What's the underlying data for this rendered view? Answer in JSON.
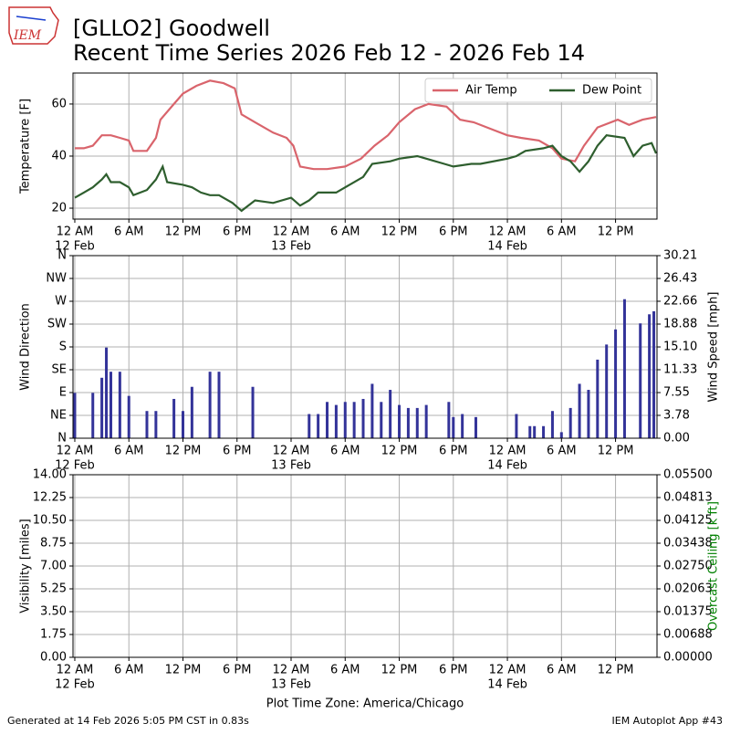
{
  "logo": "IEM",
  "title": "[GLLO2] Goodwell",
  "subtitle": "Recent Time Series 2026 Feb 12 - 2026 Feb 14",
  "footer_left": "Generated at 14 Feb 2026 5:05 PM CST in 0.83s",
  "footer_right": "IEM Autoplot App #43",
  "chart_data": [
    {
      "type": "line",
      "ylabel": "Temperature [F]",
      "legend": "upper right",
      "grid": true,
      "xlim": [
        "2026-02-11T23:48",
        "2026-02-14T16:36"
      ],
      "xticks": [
        {
          "value": "2026-02-12T00:00",
          "label": "12 AM"
        },
        {
          "value": "2026-02-12T06:00",
          "label": "6 AM"
        },
        {
          "value": "2026-02-12T12:00",
          "label": "12 PM"
        },
        {
          "value": "2026-02-12T18:00",
          "label": "6 PM"
        },
        {
          "value": "2026-02-13T00:00",
          "label": "12 AM"
        },
        {
          "value": "2026-02-13T06:00",
          "label": "6 AM"
        },
        {
          "value": "2026-02-13T12:00",
          "label": "12 PM"
        },
        {
          "value": "2026-02-13T18:00",
          "label": "6 PM"
        },
        {
          "value": "2026-02-14T00:00",
          "label": "12 AM"
        },
        {
          "value": "2026-02-14T06:00",
          "label": "6 AM"
        },
        {
          "value": "2026-02-14T12:00",
          "label": "12 PM"
        }
      ],
      "date_ticks": [
        {
          "value": "2026-02-12T00:00",
          "label": "12 Feb"
        },
        {
          "value": "2026-02-13T00:00",
          "label": "13 Feb"
        },
        {
          "value": "2026-02-14T00:00",
          "label": "14 Feb"
        }
      ],
      "ylim": [
        15.8,
        71.9
      ],
      "yticks": [
        20,
        40,
        60
      ],
      "series": [
        {
          "name": "Air Temp",
          "color": "#d9646c",
          "x": [
            "2026-02-12T00:00",
            "2026-02-12T01:00",
            "2026-02-12T02:00",
            "2026-02-12T03:00",
            "2026-02-12T04:00",
            "2026-02-12T05:00",
            "2026-02-12T06:00",
            "2026-02-12T06:30",
            "2026-02-12T08:00",
            "2026-02-12T09:00",
            "2026-02-12T09:30",
            "2026-02-12T11:00",
            "2026-02-12T12:00",
            "2026-02-12T13:30",
            "2026-02-12T15:00",
            "2026-02-12T16:30",
            "2026-02-12T17:45",
            "2026-02-12T18:30",
            "2026-02-12T20:00",
            "2026-02-12T22:00",
            "2026-02-12T23:30",
            "2026-02-13T00:15",
            "2026-02-13T01:00",
            "2026-02-13T02:30",
            "2026-02-13T04:00",
            "2026-02-13T06:00",
            "2026-02-13T07:45",
            "2026-02-13T09:15",
            "2026-02-13T10:45",
            "2026-02-13T12:00",
            "2026-02-13T13:45",
            "2026-02-13T15:15",
            "2026-02-13T17:15",
            "2026-02-13T18:45",
            "2026-02-13T20:15",
            "2026-02-13T22:30",
            "2026-02-14T00:00",
            "2026-02-14T01:30",
            "2026-02-14T03:30",
            "2026-02-14T05:00",
            "2026-02-14T06:00",
            "2026-02-14T07:30",
            "2026-02-14T08:30",
            "2026-02-14T10:00",
            "2026-02-14T12:15",
            "2026-02-14T13:30",
            "2026-02-14T15:00",
            "2026-02-14T16:30"
          ],
          "values": [
            43,
            43,
            44,
            48,
            48,
            47,
            46,
            42,
            42,
            47,
            54,
            60,
            64,
            67,
            69,
            68,
            66,
            56,
            53,
            49,
            47,
            44,
            36,
            35,
            35,
            36,
            39,
            44,
            48,
            53,
            58,
            60,
            59,
            54,
            53,
            50,
            48,
            47,
            46,
            43,
            39,
            38,
            44,
            51,
            54,
            52,
            54,
            55
          ]
        },
        {
          "name": "Dew Point",
          "color": "#2e5e2e",
          "x": [
            "2026-02-12T00:00",
            "2026-02-12T01:00",
            "2026-02-12T02:00",
            "2026-02-12T03:00",
            "2026-02-12T03:30",
            "2026-02-12T04:00",
            "2026-02-12T05:00",
            "2026-02-12T06:00",
            "2026-02-12T06:30",
            "2026-02-12T08:00",
            "2026-02-12T09:00",
            "2026-02-12T09:45",
            "2026-02-12T10:15",
            "2026-02-12T12:00",
            "2026-02-12T13:00",
            "2026-02-12T14:00",
            "2026-02-12T15:00",
            "2026-02-12T16:00",
            "2026-02-12T17:30",
            "2026-02-12T18:30",
            "2026-02-12T20:00",
            "2026-02-12T22:00",
            "2026-02-13T00:00",
            "2026-02-13T01:00",
            "2026-02-13T02:00",
            "2026-02-13T03:00",
            "2026-02-13T05:00",
            "2026-02-13T06:00",
            "2026-02-13T08:00",
            "2026-02-13T09:00",
            "2026-02-13T11:00",
            "2026-02-13T12:00",
            "2026-02-13T14:00",
            "2026-02-13T15:00",
            "2026-02-13T17:00",
            "2026-02-13T18:00",
            "2026-02-13T20:00",
            "2026-02-13T21:00",
            "2026-02-14T00:00",
            "2026-02-14T01:00",
            "2026-02-14T02:00",
            "2026-02-14T04:00",
            "2026-02-14T05:00",
            "2026-02-14T06:00",
            "2026-02-14T07:00",
            "2026-02-14T08:00",
            "2026-02-14T09:00",
            "2026-02-14T10:00",
            "2026-02-14T11:00",
            "2026-02-14T13:00",
            "2026-02-14T14:00",
            "2026-02-14T15:00",
            "2026-02-14T16:00",
            "2026-02-14T16:30"
          ],
          "values": [
            24,
            26,
            28,
            31,
            33,
            30,
            30,
            28,
            25,
            27,
            31,
            36,
            30,
            29,
            28,
            26,
            25,
            25,
            22,
            19,
            23,
            22,
            24,
            21,
            23,
            26,
            26,
            28,
            32,
            37,
            38,
            39,
            40,
            39,
            37,
            36,
            37,
            37,
            39,
            40,
            42,
            43,
            44,
            40,
            38,
            34,
            38,
            44,
            48,
            47,
            40,
            44,
            45,
            41
          ]
        }
      ]
    },
    {
      "type": "bar",
      "ylabel": "Wind Direction",
      "y2label": "Wind Speed [mph]",
      "grid": true,
      "xlim": [
        "2026-02-11T23:48",
        "2026-02-14T16:36"
      ],
      "xticks": [
        {
          "value": "2026-02-12T00:00",
          "label": "12 AM"
        },
        {
          "value": "2026-02-12T06:00",
          "label": "6 AM"
        },
        {
          "value": "2026-02-12T12:00",
          "label": "12 PM"
        },
        {
          "value": "2026-02-12T18:00",
          "label": "6 PM"
        },
        {
          "value": "2026-02-13T00:00",
          "label": "12 AM"
        },
        {
          "value": "2026-02-13T06:00",
          "label": "6 AM"
        },
        {
          "value": "2026-02-13T12:00",
          "label": "12 PM"
        },
        {
          "value": "2026-02-13T18:00",
          "label": "6 PM"
        },
        {
          "value": "2026-02-14T00:00",
          "label": "12 AM"
        },
        {
          "value": "2026-02-14T06:00",
          "label": "6 AM"
        },
        {
          "value": "2026-02-14T12:00",
          "label": "12 PM"
        }
      ],
      "date_ticks": [
        {
          "value": "2026-02-12T00:00",
          "label": "12 Feb"
        },
        {
          "value": "2026-02-13T00:00",
          "label": "13 Feb"
        },
        {
          "value": "2026-02-14T00:00",
          "label": "14 Feb"
        }
      ],
      "ylim": [
        0,
        360
      ],
      "yticks": [
        {
          "value": 0,
          "label": "N"
        },
        {
          "value": 45,
          "label": "NE"
        },
        {
          "value": 90,
          "label": "E"
        },
        {
          "value": 135,
          "label": "SE"
        },
        {
          "value": 180,
          "label": "S"
        },
        {
          "value": 225,
          "label": "SW"
        },
        {
          "value": 270,
          "label": "W"
        },
        {
          "value": 315,
          "label": "NW"
        },
        {
          "value": 360,
          "label": "N"
        }
      ],
      "y2lim": [
        0,
        30.21
      ],
      "y2ticks": [
        {
          "value": 0,
          "label": "0.00"
        },
        3.78,
        7.55,
        11.33,
        {
          "value": 15.1,
          "label": "15.10"
        },
        18.88,
        22.66,
        26.43,
        30.21
      ],
      "series": [
        {
          "name": "Wind Speed",
          "axis": "y2",
          "color": "#333399",
          "x": [
            "2026-02-12T00:00",
            "2026-02-12T02:00",
            "2026-02-12T03:00",
            "2026-02-12T03:30",
            "2026-02-12T04:00",
            "2026-02-12T05:00",
            "2026-02-12T06:00",
            "2026-02-12T08:00",
            "2026-02-12T09:00",
            "2026-02-12T11:00",
            "2026-02-12T12:00",
            "2026-02-12T13:00",
            "2026-02-12T15:00",
            "2026-02-12T16:00",
            "2026-02-12T19:45",
            "2026-02-13T02:00",
            "2026-02-13T03:00",
            "2026-02-13T04:00",
            "2026-02-13T05:00",
            "2026-02-13T06:00",
            "2026-02-13T07:00",
            "2026-02-13T08:00",
            "2026-02-13T09:00",
            "2026-02-13T10:00",
            "2026-02-13T11:00",
            "2026-02-13T12:00",
            "2026-02-13T13:00",
            "2026-02-13T14:00",
            "2026-02-13T15:00",
            "2026-02-13T17:30",
            "2026-02-13T18:00",
            "2026-02-13T19:00",
            "2026-02-13T20:30",
            "2026-02-14T01:00",
            "2026-02-14T02:30",
            "2026-02-14T03:00",
            "2026-02-14T04:00",
            "2026-02-14T05:00",
            "2026-02-14T06:00",
            "2026-02-14T07:00",
            "2026-02-14T08:00",
            "2026-02-14T09:00",
            "2026-02-14T10:00",
            "2026-02-14T11:00",
            "2026-02-14T12:00",
            "2026-02-14T13:00",
            "2026-02-14T14:45",
            "2026-02-14T15:45",
            "2026-02-14T16:15"
          ],
          "values": [
            7.5,
            7.5,
            10,
            15,
            11,
            11,
            7,
            4.5,
            4.5,
            6.5,
            4.5,
            8.5,
            11,
            11,
            8.5,
            4,
            4,
            6,
            5.5,
            6,
            6,
            6.5,
            9,
            6,
            8,
            5.5,
            5,
            5,
            5.5,
            6,
            3.5,
            4,
            3.5,
            4,
            2,
            2,
            2,
            4.5,
            1,
            5,
            9,
            8,
            13,
            15.5,
            18,
            23,
            19,
            20.5,
            21
          ]
        }
      ]
    },
    {
      "type": "line",
      "ylabel": "Visibility [miles]",
      "y2label": "Overcast Ceiling [k ft]",
      "y2color": "#008000",
      "xlabel": "Plot Time Zone: America/Chicago",
      "grid": true,
      "xlim": [
        "2026-02-11T23:48",
        "2026-02-14T16:36"
      ],
      "xticks": [
        {
          "value": "2026-02-12T00:00",
          "label": "12 AM"
        },
        {
          "value": "2026-02-12T06:00",
          "label": "6 AM"
        },
        {
          "value": "2026-02-12T12:00",
          "label": "12 PM"
        },
        {
          "value": "2026-02-12T18:00",
          "label": "6 PM"
        },
        {
          "value": "2026-02-13T00:00",
          "label": "12 AM"
        },
        {
          "value": "2026-02-13T06:00",
          "label": "6 AM"
        },
        {
          "value": "2026-02-13T12:00",
          "label": "12 PM"
        },
        {
          "value": "2026-02-13T18:00",
          "label": "6 PM"
        },
        {
          "value": "2026-02-14T00:00",
          "label": "12 AM"
        },
        {
          "value": "2026-02-14T06:00",
          "label": "6 AM"
        },
        {
          "value": "2026-02-14T12:00",
          "label": "12 PM"
        }
      ],
      "date_ticks": [
        {
          "value": "2026-02-12T00:00",
          "label": "12 Feb"
        },
        {
          "value": "2026-02-13T00:00",
          "label": "13 Feb"
        },
        {
          "value": "2026-02-14T00:00",
          "label": "14 Feb"
        }
      ],
      "ylim": [
        0,
        14
      ],
      "yticks": [
        {
          "value": 0,
          "label": "0.00"
        },
        1.75,
        {
          "value": 3.5,
          "label": "3.50"
        },
        5.25,
        {
          "value": 7,
          "label": "7.00"
        },
        8.75,
        {
          "value": 10.5,
          "label": "10.50"
        },
        12.25,
        {
          "value": 14,
          "label": "14.00"
        }
      ],
      "y2lim": [
        0,
        0.055
      ],
      "y2ticks": [
        {
          "value": 0,
          "label": "0.00000"
        },
        {
          "value": 0.006875,
          "label": "0.00688"
        },
        {
          "value": 0.01375,
          "label": "0.01375"
        },
        {
          "value": 0.020625,
          "label": "0.02063"
        },
        {
          "value": 0.0275,
          "label": "0.02750"
        },
        {
          "value": 0.034375,
          "label": "0.03438"
        },
        {
          "value": 0.04125,
          "label": "0.04125"
        },
        {
          "value": 0.048125,
          "label": "0.04813"
        },
        {
          "value": 0.055,
          "label": "0.05500"
        }
      ],
      "series": []
    }
  ]
}
